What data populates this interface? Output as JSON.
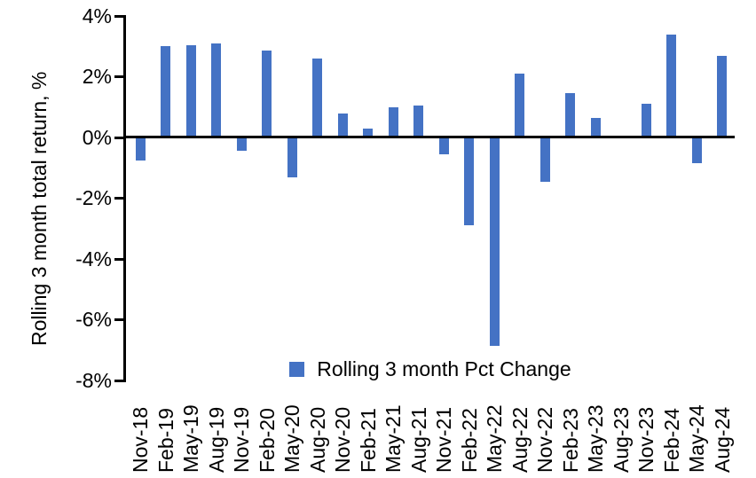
{
  "chart_data": {
    "type": "bar",
    "title": "",
    "xlabel": "",
    "ylabel": "Rolling 3 month total return, %",
    "categories": [
      "Nov-18",
      "Feb-19",
      "May-19",
      "Aug-19",
      "Nov-19",
      "Feb-20",
      "May-20",
      "Aug-20",
      "Nov-20",
      "Feb-21",
      "May-21",
      "Aug-21",
      "Nov-21",
      "Feb-22",
      "May-22",
      "Aug-22",
      "Nov-22",
      "Feb-23",
      "May-23",
      "Aug-23",
      "Nov-23",
      "Feb-24",
      "May-24",
      "Aug-24"
    ],
    "series": [
      {
        "name": "Rolling 3 month Pct Change",
        "values": [
          -0.75,
          3.0,
          3.05,
          3.1,
          -0.45,
          2.85,
          -1.3,
          2.6,
          0.8,
          0.3,
          1.0,
          1.05,
          -0.55,
          -2.9,
          -6.85,
          2.1,
          -1.45,
          1.45,
          0.65,
          0.0,
          1.1,
          3.4,
          -0.85,
          2.7
        ]
      }
    ],
    "ylim": [
      -8,
      4
    ],
    "y_ticks": [
      4,
      2,
      0,
      -2,
      -4,
      -6,
      -8
    ],
    "y_tick_labels": [
      "4%",
      "2%",
      "0%",
      "-2%",
      "-4%",
      "-6%",
      "-8%"
    ],
    "grid": false,
    "legend_position": "bottom-center-inside",
    "bar_color": "#4472C4",
    "axis_color": "#000000"
  },
  "legend": {
    "label": "Rolling 3 month Pct Change",
    "swatch_color": "#4472C4"
  }
}
